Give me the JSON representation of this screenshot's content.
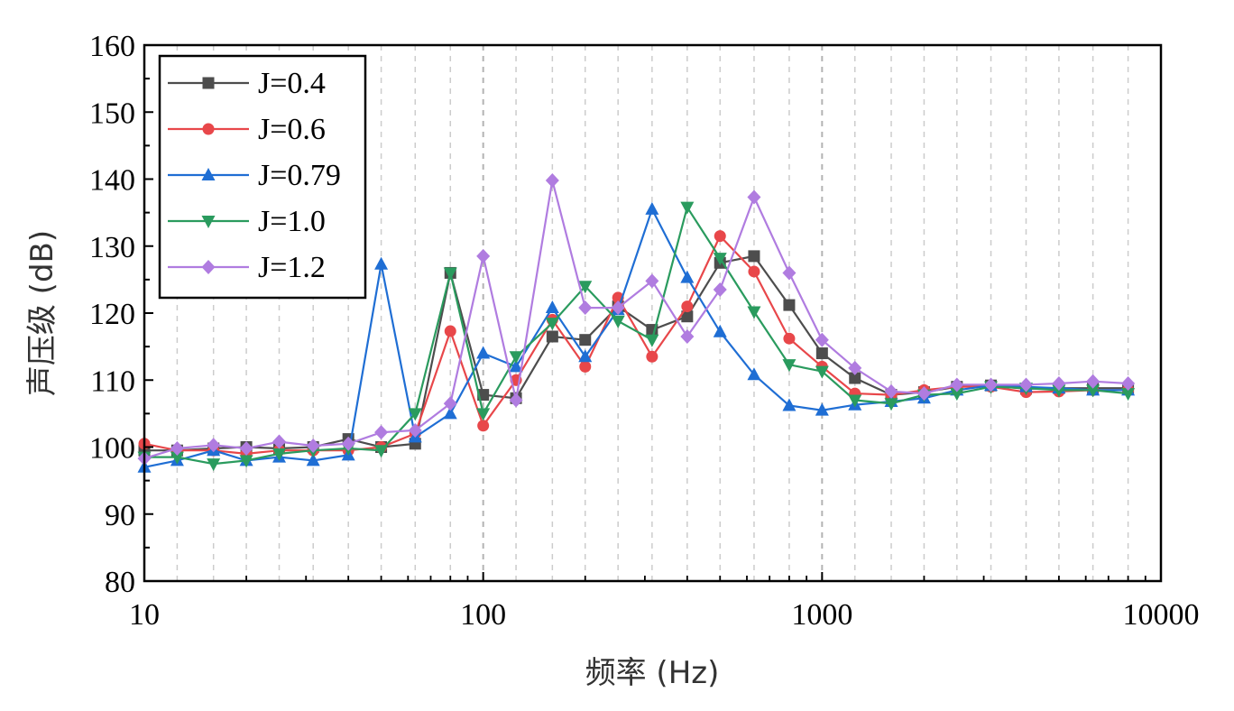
{
  "chart_data": {
    "type": "line",
    "xlabel": "频率 (Hz)",
    "ylabel": "声压级 (dB)",
    "xscale": "log",
    "xlim": [
      10,
      10000
    ],
    "ylim": [
      80,
      160
    ],
    "xticks": [
      "10",
      "100",
      "1000",
      "10000"
    ],
    "yticks": [
      "80",
      "90",
      "100",
      "110",
      "120",
      "130",
      "140",
      "150",
      "160"
    ],
    "grid": "vertical dashed at 1/3-octave frequencies",
    "legend_position": "top-left",
    "x": [
      10,
      12.5,
      16,
      20,
      25,
      31.5,
      40,
      50,
      63,
      80,
      100,
      125,
      160,
      200,
      250,
      315,
      400,
      500,
      630,
      800,
      1000,
      1250,
      1600,
      2000,
      2500,
      3150,
      4000,
      5000,
      6300,
      8000
    ],
    "series": [
      {
        "name": "J=0.4",
        "color": "#4d4d4d",
        "marker": "square",
        "values": [
          99.5,
          99.5,
          99.8,
          100.0,
          99.8,
          100.0,
          101.2,
          100.0,
          100.5,
          126.0,
          107.8,
          107.3,
          116.5,
          116.0,
          121.0,
          117.5,
          119.5,
          127.5,
          128.5,
          121.2,
          114.0,
          110.3,
          107.8,
          108.2,
          109.0,
          109.2,
          108.7,
          108.8,
          108.8,
          108.8
        ]
      },
      {
        "name": "J=0.6",
        "color": "#e8474a",
        "marker": "circle",
        "values": [
          100.5,
          99.5,
          99.5,
          99.0,
          99.5,
          99.5,
          99.5,
          100.0,
          102.0,
          117.3,
          103.2,
          110.0,
          119.0,
          112.0,
          122.3,
          113.5,
          121.0,
          131.5,
          126.2,
          116.2,
          112.0,
          108.0,
          107.8,
          108.5,
          109.0,
          109.0,
          108.2,
          108.3,
          108.5,
          108.5
        ]
      },
      {
        "name": "J=0.79",
        "color": "#1f6ed4",
        "marker": "triangle-up",
        "values": [
          97.0,
          98.0,
          99.5,
          98.0,
          98.5,
          98.0,
          98.8,
          127.3,
          101.5,
          105.0,
          114.0,
          112.0,
          120.8,
          113.5,
          120.5,
          135.5,
          125.3,
          117.2,
          110.8,
          106.2,
          105.5,
          106.3,
          106.8,
          107.3,
          108.5,
          109.2,
          109.0,
          108.8,
          108.5,
          108.5
        ]
      },
      {
        "name": "J=1.0",
        "color": "#2a9b5e",
        "marker": "triangle-down",
        "values": [
          98.5,
          98.5,
          97.5,
          98.0,
          99.0,
          99.5,
          99.8,
          99.5,
          105.0,
          126.0,
          105.0,
          113.5,
          118.5,
          124.0,
          118.8,
          116.0,
          135.8,
          128.2,
          120.2,
          112.3,
          111.3,
          107.0,
          106.5,
          107.8,
          108.0,
          109.0,
          108.8,
          108.5,
          108.5,
          108.0
        ]
      },
      {
        "name": "J=1.2",
        "color": "#b07ce0",
        "marker": "diamond",
        "values": [
          98.3,
          99.8,
          100.3,
          99.8,
          100.8,
          100.2,
          100.5,
          102.2,
          102.5,
          106.5,
          128.5,
          107.0,
          139.8,
          120.8,
          120.8,
          124.8,
          116.5,
          123.5,
          137.3,
          126.0,
          116.0,
          111.8,
          108.3,
          108.0,
          109.3,
          109.3,
          109.3,
          109.5,
          109.8,
          109.5
        ]
      }
    ]
  }
}
